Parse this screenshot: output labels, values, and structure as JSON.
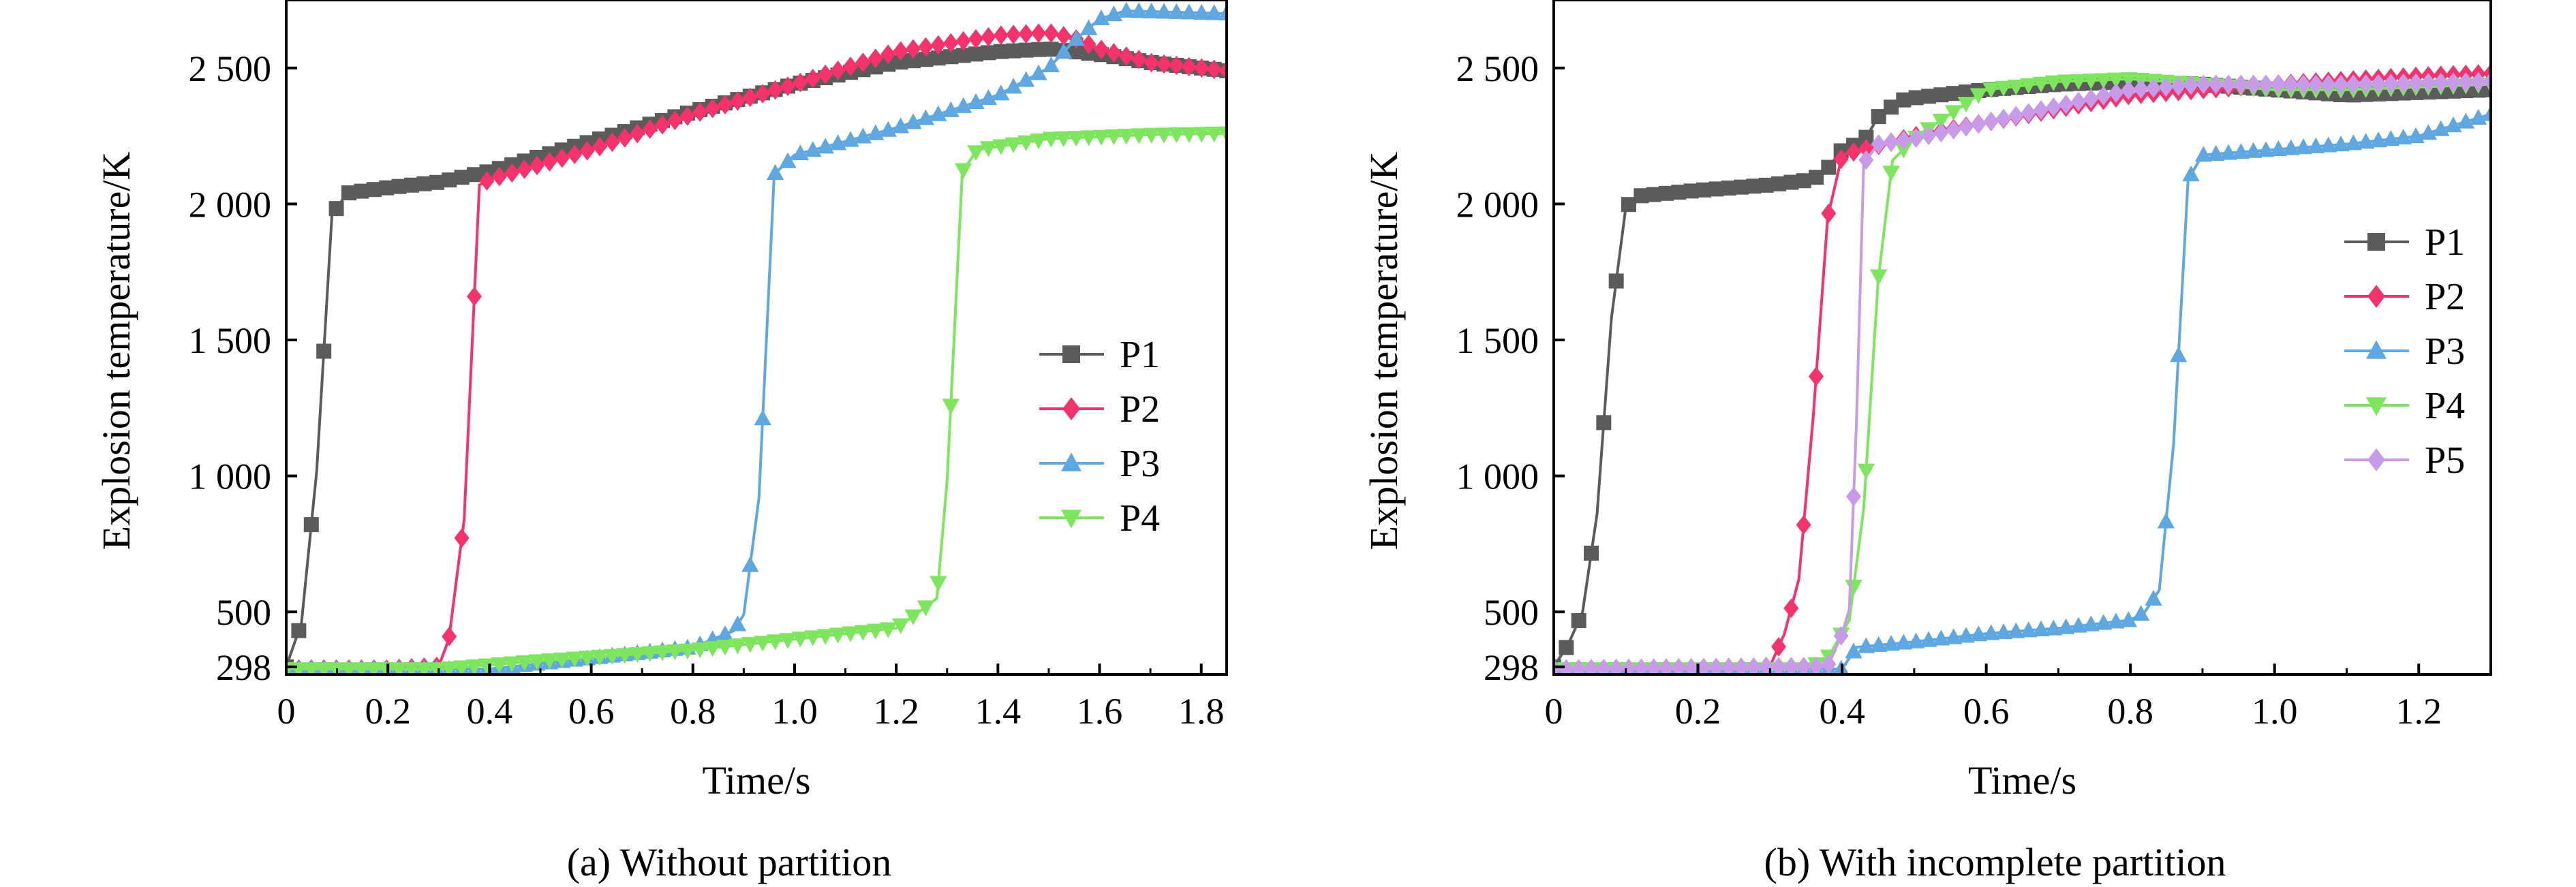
{
  "chart_data": [
    {
      "type": "line",
      "caption": "(a) Without partition",
      "xlabel": "Time/s",
      "ylabel": "Explosion temperature/K",
      "xlim": [
        0,
        1.85
      ],
      "ylim": [
        270,
        2750
      ],
      "xticks": [
        0,
        0.2,
        0.4,
        0.6,
        0.8,
        1.0,
        1.2,
        1.4,
        1.6,
        1.8
      ],
      "xtick_labels": [
        "0",
        "0.2",
        "0.4",
        "0.6",
        "0.8",
        "1.0",
        "1.2",
        "1.4",
        "1.6",
        "1.8"
      ],
      "yticks": [
        298,
        500,
        1000,
        1500,
        2000,
        2500
      ],
      "ytick_labels": [
        "298",
        "500",
        "1 000",
        "1 500",
        "2 000",
        "2 500"
      ],
      "legend_position": "center-right",
      "series": [
        {
          "name": "P1",
          "color": "#5b5b5b",
          "marker": "square",
          "points": [
            [
              0,
              298
            ],
            [
              0.03,
              460
            ],
            [
              0.06,
              1020
            ],
            [
              0.09,
              1960
            ],
            [
              0.12,
              2040
            ],
            [
              0.2,
              2060
            ],
            [
              0.3,
              2080
            ],
            [
              0.4,
              2120
            ],
            [
              0.6,
              2230
            ],
            [
              0.8,
              2340
            ],
            [
              1.0,
              2440
            ],
            [
              1.2,
              2520
            ],
            [
              1.4,
              2560
            ],
            [
              1.5,
              2570
            ],
            [
              1.6,
              2550
            ],
            [
              1.7,
              2520
            ],
            [
              1.85,
              2490
            ]
          ]
        },
        {
          "name": "P2",
          "color": "#f4336d",
          "marker": "diamond",
          "points": [
            [
              0,
              290
            ],
            [
              0.2,
              290
            ],
            [
              0.3,
              300
            ],
            [
              0.32,
              400
            ],
            [
              0.35,
              840
            ],
            [
              0.38,
              2070
            ],
            [
              0.4,
              2090
            ],
            [
              0.6,
              2200
            ],
            [
              0.8,
              2330
            ],
            [
              1.0,
              2440
            ],
            [
              1.2,
              2560
            ],
            [
              1.4,
              2620
            ],
            [
              1.5,
              2630
            ],
            [
              1.55,
              2610
            ],
            [
              1.6,
              2570
            ],
            [
              1.7,
              2520
            ],
            [
              1.85,
              2490
            ]
          ]
        },
        {
          "name": "P3",
          "color": "#5fa7e0",
          "marker": "triangle-up",
          "points": [
            [
              0,
              290
            ],
            [
              0.4,
              290
            ],
            [
              0.6,
              330
            ],
            [
              0.8,
              370
            ],
            [
              0.88,
              430
            ],
            [
              0.9,
              490
            ],
            [
              0.93,
              920
            ],
            [
              0.96,
              2110
            ],
            [
              1.0,
              2180
            ],
            [
              1.2,
              2280
            ],
            [
              1.4,
              2400
            ],
            [
              1.5,
              2500
            ],
            [
              1.55,
              2600
            ],
            [
              1.6,
              2680
            ],
            [
              1.65,
              2710
            ],
            [
              1.85,
              2700
            ]
          ]
        },
        {
          "name": "P4",
          "color": "#7de55e",
          "marker": "triangle-down",
          "points": [
            [
              0,
              290
            ],
            [
              0.3,
              290
            ],
            [
              0.5,
              320
            ],
            [
              0.8,
              360
            ],
            [
              1.0,
              400
            ],
            [
              1.2,
              440
            ],
            [
              1.26,
              520
            ],
            [
              1.28,
              550
            ],
            [
              1.3,
              980
            ],
            [
              1.33,
              2120
            ],
            [
              1.36,
              2200
            ],
            [
              1.5,
              2240
            ],
            [
              1.7,
              2255
            ],
            [
              1.85,
              2260
            ]
          ]
        }
      ]
    },
    {
      "type": "line",
      "caption": "(b) With incomplete partition",
      "xlabel": "Time/s",
      "ylabel": "Explosion temperature/K",
      "xlim": [
        0,
        1.3
      ],
      "ylim": [
        270,
        2750
      ],
      "xticks": [
        0,
        0.2,
        0.4,
        0.6,
        0.8,
        1.0,
        1.2
      ],
      "xtick_labels": [
        "0",
        "0.2",
        "0.4",
        "0.6",
        "0.8",
        "1.0",
        "1.2"
      ],
      "yticks": [
        298,
        500,
        1000,
        1500,
        2000,
        2500
      ],
      "ytick_labels": [
        "298",
        "500",
        "1 000",
        "1 500",
        "2 000",
        "2 500"
      ],
      "legend_position": "upper-right",
      "series": [
        {
          "name": "P1",
          "color": "#5b5b5b",
          "marker": "square",
          "points": [
            [
              0,
              298
            ],
            [
              0.02,
              380
            ],
            [
              0.04,
              500
            ],
            [
              0.06,
              860
            ],
            [
              0.08,
              1580
            ],
            [
              0.1,
              1990
            ],
            [
              0.12,
              2030
            ],
            [
              0.2,
              2050
            ],
            [
              0.3,
              2070
            ],
            [
              0.36,
              2090
            ],
            [
              0.38,
              2130
            ],
            [
              0.4,
              2200
            ],
            [
              0.43,
              2230
            ],
            [
              0.45,
              2320
            ],
            [
              0.48,
              2380
            ],
            [
              0.5,
              2390
            ],
            [
              0.6,
              2420
            ],
            [
              0.7,
              2440
            ],
            [
              0.8,
              2450
            ],
            [
              0.9,
              2440
            ],
            [
              1.0,
              2420
            ],
            [
              1.1,
              2400
            ],
            [
              1.3,
              2420
            ]
          ]
        },
        {
          "name": "P2",
          "color": "#f4336d",
          "marker": "diamond",
          "points": [
            [
              0,
              290
            ],
            [
              0.25,
              290
            ],
            [
              0.3,
              300
            ],
            [
              0.32,
              420
            ],
            [
              0.34,
              620
            ],
            [
              0.36,
              1220
            ],
            [
              0.38,
              1950
            ],
            [
              0.4,
              2180
            ],
            [
              0.5,
              2250
            ],
            [
              0.6,
              2300
            ],
            [
              0.8,
              2400
            ],
            [
              1.0,
              2440
            ],
            [
              1.2,
              2470
            ],
            [
              1.3,
              2480
            ]
          ]
        },
        {
          "name": "P3",
          "color": "#5fa7e0",
          "marker": "triangle-up",
          "points": [
            [
              0,
              290
            ],
            [
              0.4,
              290
            ],
            [
              0.42,
              370
            ],
            [
              0.5,
              390
            ],
            [
              0.6,
              420
            ],
            [
              0.7,
              440
            ],
            [
              0.8,
              470
            ],
            [
              0.82,
              500
            ],
            [
              0.84,
              580
            ],
            [
              0.86,
              1120
            ],
            [
              0.88,
              2090
            ],
            [
              0.9,
              2180
            ],
            [
              1.0,
              2200
            ],
            [
              1.1,
              2220
            ],
            [
              1.2,
              2250
            ],
            [
              1.3,
              2330
            ]
          ]
        },
        {
          "name": "P4",
          "color": "#7de55e",
          "marker": "triangle-down",
          "points": [
            [
              0,
              290
            ],
            [
              0.35,
              290
            ],
            [
              0.38,
              330
            ],
            [
              0.41,
              470
            ],
            [
              0.43,
              880
            ],
            [
              0.45,
              1720
            ],
            [
              0.47,
              2160
            ],
            [
              0.5,
              2240
            ],
            [
              0.6,
              2420
            ],
            [
              0.7,
              2450
            ],
            [
              0.8,
              2460
            ],
            [
              0.9,
              2440
            ],
            [
              1.0,
              2420
            ],
            [
              1.1,
              2420
            ],
            [
              1.3,
              2440
            ]
          ]
        },
        {
          "name": "P5",
          "color": "#c89be9",
          "marker": "diamond",
          "points": [
            [
              0,
              290
            ],
            [
              0.38,
              300
            ],
            [
              0.4,
              420
            ],
            [
              0.41,
              510
            ],
            [
              0.42,
              1200
            ],
            [
              0.43,
              2150
            ],
            [
              0.45,
              2220
            ],
            [
              0.5,
              2240
            ],
            [
              0.6,
              2300
            ],
            [
              0.8,
              2420
            ],
            [
              0.9,
              2440
            ],
            [
              1.0,
              2440
            ],
            [
              1.1,
              2440
            ],
            [
              1.3,
              2450
            ]
          ]
        }
      ]
    }
  ]
}
